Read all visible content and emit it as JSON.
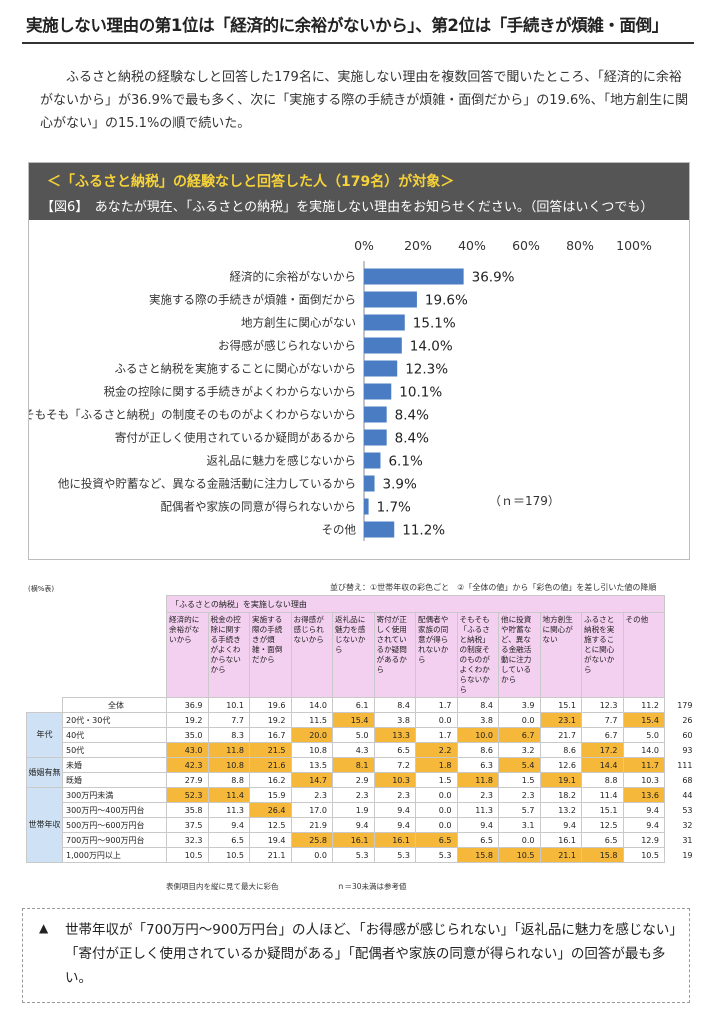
{
  "headline": "実施しない理由の第1位は「経済的に余裕がないから」、第2位は「手続きが煩雑・面倒」",
  "intro": "ふるさと納税の経験なしと回答した179名に、実施しない理由を複数回答で聞いたところ、「経済的に余裕がないから」が36.9%で最も多く、次に「実施する際の手続きが煩雑・面倒だから」の19.6%、「地方創生に関心がない」の15.1%の順で続いた。",
  "panel": {
    "subtitle": "＜「ふるさと納税」の経験なしと回答した人（179名）が対象＞",
    "question": "【図6】　あなたが現在、「ふるさとの納税」を実施しない理由をお知らせください。（回答はいくつでも）",
    "n_label": "（ｎ＝179）"
  },
  "chart_data": {
    "type": "bar",
    "orientation": "horizontal",
    "title": "【図6】　あなたが現在、「ふるさとの納税」を実施しない理由をお知らせください。（回答はいくつでも）",
    "xlim": [
      0,
      100
    ],
    "x_tick_labels": [
      "0%",
      "20%",
      "40%",
      "60%",
      "80%",
      "100%"
    ],
    "bar_color": "#4a7cc4",
    "categories": [
      "経済的に余裕がないから",
      "実施する際の手続きが煩雑・面倒だから",
      "地方創生に関心がない",
      "お得感が感じられないから",
      "ふるさと納税を実施することに関心がないから",
      "税金の控除に関する手続きがよくわからないから",
      "そもそも「ふるさと納税」の制度そのものがよくわからないから",
      "寄付が正しく使用されているか疑問があるから",
      "返礼品に魅力を感じないから",
      "他に投資や貯蓄など、異なる金融活動に注力しているから",
      "配偶者や家族の同意が得られないから",
      "その他"
    ],
    "values": [
      36.9,
      19.6,
      15.1,
      14.0,
      12.3,
      10.1,
      8.4,
      8.4,
      6.1,
      3.9,
      1.7,
      11.2
    ],
    "value_labels": [
      "36.9%",
      "19.6%",
      "15.1%",
      "14.0%",
      "12.3%",
      "10.1%",
      "8.4%",
      "8.4%",
      "6.1%",
      "3.9%",
      "1.7%",
      "11.2%"
    ]
  },
  "table": {
    "unit_label": "(横%表)",
    "sort_note": "並び替え：①世帯年収の彩色ごと　②「全体の値」から「彩色の値」を差し引いた値の降順",
    "group_header": "「ふるさとの納税」を実施しない理由",
    "columns": [
      "経済的に余裕がないから",
      "税金の控除に関する手続きがよくわからないから",
      "実施する際の手続きが煩雑・面倒だから",
      "お得感が感じられないから",
      "返礼品に魅力を感じないから",
      "寄付が正しく使用されているか疑問があるから",
      "配偶者や家族の同意が得られないから",
      "そもそも「ふるさと納税」の制度そのものがよくわからないから",
      "他に投資や貯蓄など、異なる金融活動に注力しているから",
      "地方創生に関心がない",
      "ふるさと納税を実施することに関心がないから",
      "その他"
    ],
    "n_header": "n",
    "highlight_color": "#f6b83a",
    "rows": [
      {
        "group": "",
        "label": "全体",
        "values": [
          "36.9",
          "10.1",
          "19.6",
          "14.0",
          "6.1",
          "8.4",
          "1.7",
          "8.4",
          "3.9",
          "15.1",
          "12.3",
          "11.2"
        ],
        "n": "179",
        "hl": []
      },
      {
        "group": "年代",
        "label": "20代・30代",
        "values": [
          "19.2",
          "7.7",
          "19.2",
          "11.5",
          "15.4",
          "3.8",
          "0.0",
          "3.8",
          "0.0",
          "23.1",
          "7.7",
          "15.4"
        ],
        "n": "26",
        "hl": [
          4,
          9,
          11
        ]
      },
      {
        "group": "",
        "label": "40代",
        "values": [
          "35.0",
          "8.3",
          "16.7",
          "20.0",
          "5.0",
          "13.3",
          "1.7",
          "10.0",
          "6.7",
          "21.7",
          "6.7",
          "5.0"
        ],
        "n": "60",
        "hl": [
          3,
          5,
          7,
          8
        ]
      },
      {
        "group": "",
        "label": "50代",
        "values": [
          "43.0",
          "11.8",
          "21.5",
          "10.8",
          "4.3",
          "6.5",
          "2.2",
          "8.6",
          "3.2",
          "8.6",
          "17.2",
          "14.0"
        ],
        "n": "93",
        "hl": [
          0,
          1,
          2,
          6,
          10
        ]
      },
      {
        "group": "婚姻有無",
        "label": "未婚",
        "values": [
          "42.3",
          "10.8",
          "21.6",
          "13.5",
          "8.1",
          "7.2",
          "1.8",
          "6.3",
          "5.4",
          "12.6",
          "14.4",
          "11.7"
        ],
        "n": "111",
        "hl": [
          0,
          1,
          2,
          4,
          6,
          8,
          10,
          11
        ]
      },
      {
        "group": "",
        "label": "既婚",
        "values": [
          "27.9",
          "8.8",
          "16.2",
          "14.7",
          "2.9",
          "10.3",
          "1.5",
          "11.8",
          "1.5",
          "19.1",
          "8.8",
          "10.3"
        ],
        "n": "68",
        "hl": [
          3,
          5,
          7,
          9
        ]
      },
      {
        "group": "世帯年収",
        "label": "300万円未満",
        "values": [
          "52.3",
          "11.4",
          "15.9",
          "2.3",
          "2.3",
          "2.3",
          "0.0",
          "2.3",
          "2.3",
          "18.2",
          "11.4",
          "13.6"
        ],
        "n": "44",
        "hl": [
          0,
          1,
          11
        ]
      },
      {
        "group": "",
        "label": "300万円～400万円台",
        "values": [
          "35.8",
          "11.3",
          "26.4",
          "17.0",
          "1.9",
          "9.4",
          "0.0",
          "11.3",
          "5.7",
          "13.2",
          "15.1",
          "9.4"
        ],
        "n": "53",
        "hl": [
          2
        ]
      },
      {
        "group": "",
        "label": "500万円～600万円台",
        "values": [
          "37.5",
          "9.4",
          "12.5",
          "21.9",
          "9.4",
          "9.4",
          "0.0",
          "9.4",
          "3.1",
          "9.4",
          "12.5",
          "9.4"
        ],
        "n": "32",
        "hl": []
      },
      {
        "group": "",
        "label": "700万円～900万円台",
        "values": [
          "32.3",
          "6.5",
          "19.4",
          "25.8",
          "16.1",
          "16.1",
          "6.5",
          "6.5",
          "0.0",
          "16.1",
          "6.5",
          "12.9"
        ],
        "n": "31",
        "hl": [
          3,
          4,
          5,
          6
        ]
      },
      {
        "group": "",
        "label": "1,000万円以上",
        "values": [
          "10.5",
          "10.5",
          "21.1",
          "0.0",
          "5.3",
          "5.3",
          "5.3",
          "15.8",
          "10.5",
          "21.1",
          "15.8",
          "10.5"
        ],
        "n": "19",
        "hl": [
          7,
          8,
          9,
          10
        ]
      }
    ],
    "footnote_left": "表側項目内を縦に見て最大に彩色",
    "footnote_right": "ｎ＝30未満は参考値"
  },
  "summary": {
    "mark": "▲",
    "text": "世帯年収が「700万円～900万円台」の人ほど、「お得感が感じられない」「返礼品に魅力を感じない」「寄付が正しく使用されているか疑問がある」「配偶者や家族の同意が得られない」の回答が最も多い。"
  }
}
